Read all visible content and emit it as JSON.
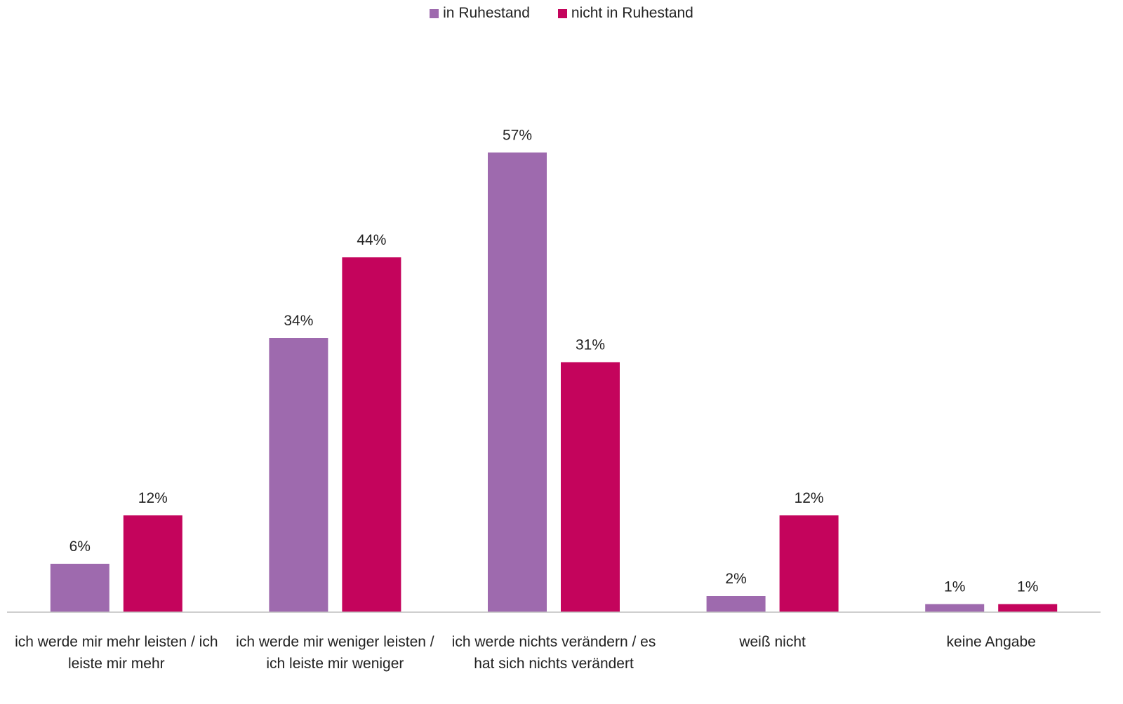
{
  "chart_data": {
    "type": "bar",
    "title": "",
    "xlabel": "",
    "ylabel": "",
    "ylim": [
      0,
      60
    ],
    "legend_position": "top-center",
    "grid": false,
    "categories": [
      "ich werde mir mehr leisten / ich leiste mir mehr",
      "ich werde mir weniger leisten / ich leiste mir weniger",
      "ich werde nichts verändern / es hat sich nichts verändert",
      "weiß nicht",
      "keine Angabe"
    ],
    "series": [
      {
        "name": "in Ruhestand",
        "color": "#9e6aae",
        "values": [
          6,
          34,
          57,
          2,
          1
        ],
        "labels": [
          "6%",
          "34%",
          "57%",
          "2%",
          "1%"
        ]
      },
      {
        "name": "nicht in Ruhestand",
        "color": "#c4045c",
        "values": [
          12,
          44,
          31,
          12,
          1
        ],
        "labels": [
          "12%",
          "44%",
          "31%",
          "12%",
          "1%"
        ]
      }
    ]
  }
}
